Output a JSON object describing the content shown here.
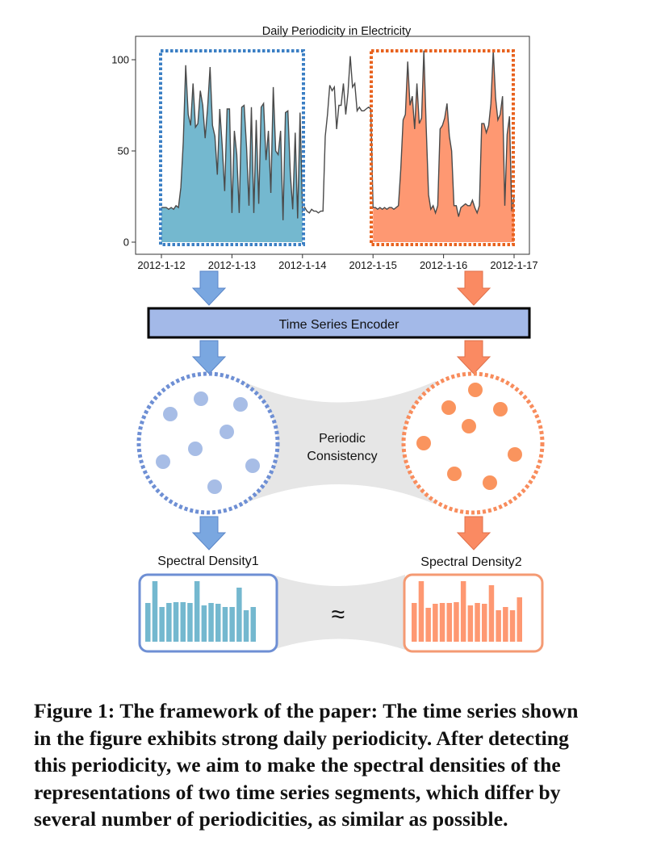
{
  "figure": {
    "chart_title": "Daily Periodicity in Electricity",
    "encoder_label": "Time Series Encoder",
    "consistency_label_line1": "Periodic",
    "consistency_label_line2": "Consistency",
    "spectral_label_1": "Spectral Density1",
    "spectral_label_2": "Spectral Density2",
    "approx_symbol": "≈",
    "caption_lines": [
      "Figure 1: The framework of the paper: The time series shown",
      "in the figure exhibits strong daily periodicity. After detecting",
      "this periodicity, we aim to make the spectral densities of the",
      "representations of two time series segments, which differ by",
      "several number of periodicities, as similar as possible."
    ]
  },
  "colors": {
    "blue_fill": "#74b8cf",
    "orange_fill": "#fe9872",
    "blue_box": "#3b7fc4",
    "orange_box": "#e8621e",
    "encoder_fill": "#a3b9e8",
    "blue_dots": "#a7bde6",
    "orange_dots": "#fa945e",
    "line": "#4a4a4a",
    "bridge": "#e6e6e6",
    "arrow_blue": "#7aa7e0",
    "arrow_orange": "#fa8a62"
  },
  "chart_data": {
    "type": "area",
    "title": "Daily Periodicity in Electricity",
    "xlabel": "",
    "ylabel": "",
    "ylim": [
      0,
      105
    ],
    "yticks": [
      0,
      50,
      100
    ],
    "xticks": [
      "2012-1-12",
      "2012-1-13",
      "2012-1-14",
      "2012-1-15",
      "2012-1-16",
      "2012-1-17"
    ],
    "x_units": "days since 2012-1-12 00:00",
    "grid": false,
    "series": [
      {
        "segment": "blue",
        "x_range": [
          0,
          2
        ],
        "values": [
          19,
          19,
          19,
          18,
          19,
          18,
          20,
          19,
          30,
          55,
          97,
          70,
          64,
          87,
          63,
          65,
          83,
          75,
          57,
          74,
          96,
          64,
          58,
          37,
          73,
          53,
          28,
          73,
          73,
          16,
          61,
          48,
          16,
          74,
          75,
          52,
          20,
          74,
          16,
          67,
          21,
          74,
          76,
          45,
          61,
          27,
          85,
          50,
          48,
          61,
          12,
          71,
          72,
          38,
          18,
          60,
          13,
          71,
          17
        ]
      },
      {
        "segment": "middle",
        "x_range": [
          2,
          3
        ],
        "values": [
          17,
          19,
          17,
          16,
          18,
          17,
          17,
          16,
          17,
          17,
          58,
          70,
          86,
          83,
          85,
          62,
          75,
          75,
          87,
          70,
          82,
          102,
          85,
          87,
          72,
          74,
          72,
          72,
          73,
          74,
          73,
          20
        ]
      },
      {
        "segment": "orange",
        "x_range": [
          3,
          5
        ],
        "values": [
          19,
          19,
          18,
          19,
          18,
          19,
          18,
          19,
          19,
          18,
          19,
          20,
          40,
          67,
          70,
          99,
          75,
          80,
          62,
          87,
          65,
          68,
          105,
          63,
          26,
          18,
          20,
          16,
          20,
          62,
          64,
          68,
          76,
          58,
          50,
          20,
          20,
          14,
          19,
          20,
          21,
          20,
          20,
          23,
          19,
          16,
          20,
          65,
          65,
          60,
          64,
          76,
          105,
          79,
          67,
          70,
          80,
          20,
          59,
          69,
          17,
          25
        ]
      }
    ]
  },
  "spectral_data": {
    "type": "bar",
    "density1": [
      48,
      75,
      43,
      48,
      49,
      49,
      48,
      75,
      45,
      48,
      47,
      43,
      43,
      67,
      39,
      43
    ],
    "density2": [
      48,
      75,
      42,
      47,
      48,
      48,
      49,
      75,
      45,
      48,
      47,
      70,
      39,
      43,
      39,
      55
    ]
  }
}
